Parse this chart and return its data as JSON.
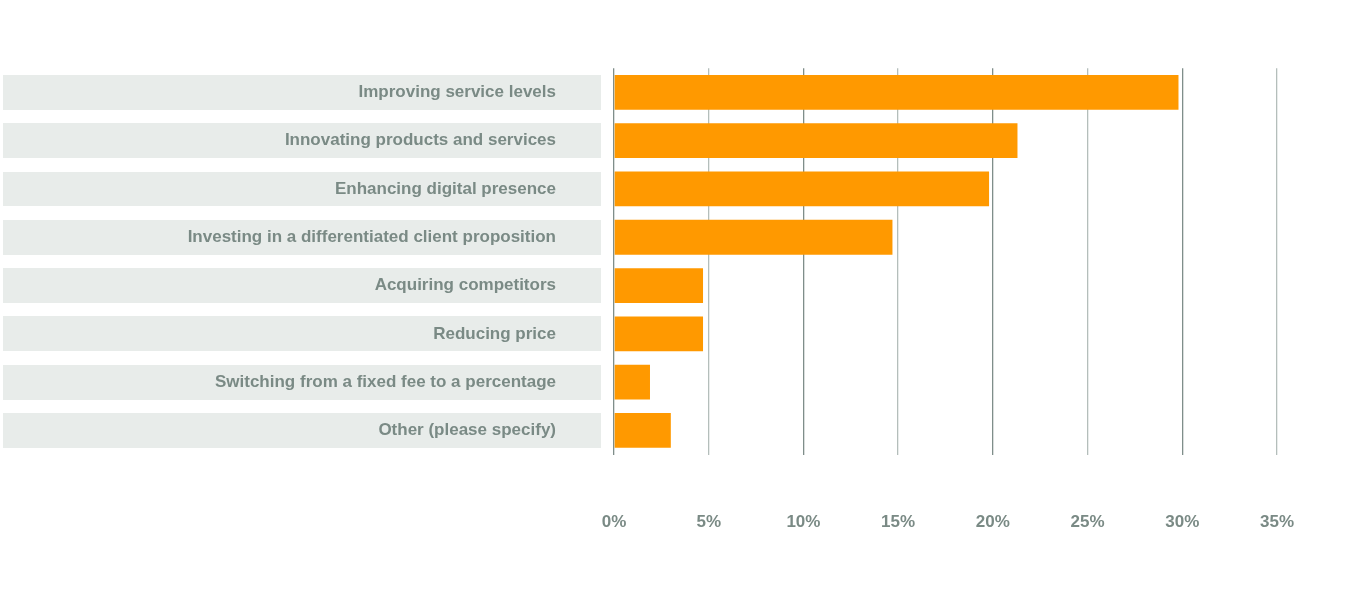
{
  "chart_data": {
    "type": "bar",
    "orientation": "horizontal",
    "categories": [
      "Improving service levels",
      "Innovating products and services",
      "Enhancing digital presence",
      "Investing in a differentiated client proposition",
      "Acquiring competitors",
      "Reducing price",
      "Switching from a fixed fee to a percentage",
      "Other (please specify)"
    ],
    "values": [
      29.8,
      21.3,
      19.8,
      14.7,
      4.7,
      4.7,
      1.9,
      3.0
    ],
    "color": "#ff9900",
    "xlim": [
      0,
      35
    ],
    "xticks": [
      {
        "value": 0,
        "label": "0%"
      },
      {
        "value": 5,
        "label": "5%"
      },
      {
        "value": 10,
        "label": "10%"
      },
      {
        "value": 15,
        "label": "15%"
      },
      {
        "value": 20,
        "label": "20%"
      },
      {
        "value": 25,
        "label": "25%"
      },
      {
        "value": 30,
        "label": "30%"
      },
      {
        "value": 35,
        "label": "35%"
      }
    ],
    "grid": "x",
    "legend": false
  }
}
